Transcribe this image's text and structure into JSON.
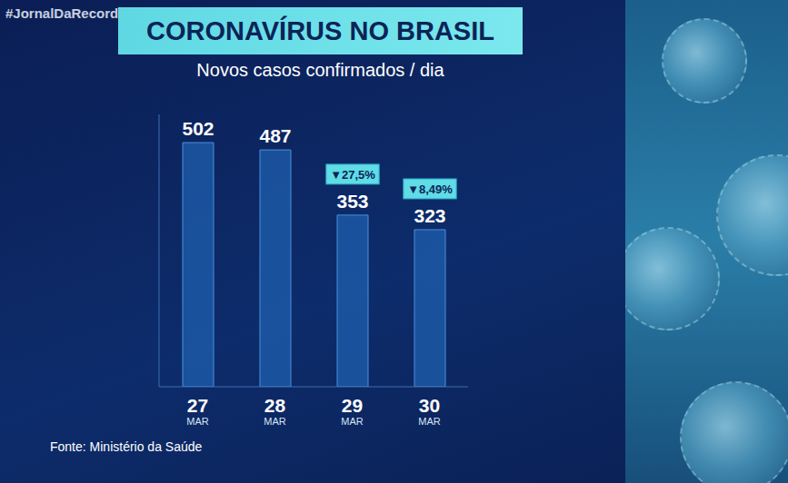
{
  "chart_data": {
    "type": "bar",
    "hashtag": "#JornalDaRecord",
    "title": "CORONAVÍRUS NO BRASIL",
    "subtitle": "Novos casos confirmados / dia",
    "categories": [
      "27 MAR",
      "28 MAR",
      "29 MAR",
      "30 MAR"
    ],
    "values": [
      502,
      487,
      353,
      323
    ],
    "color": "#1f5fae",
    "ylim": [
      0,
      560
    ],
    "data_labels": true,
    "tick_labels": "x",
    "grid": false,
    "annotations": [
      {
        "category": "29 MAR",
        "text": "▼27,5%"
      },
      {
        "category": "30 MAR",
        "text": "▼8,49%"
      }
    ],
    "source": "Fonte: Ministério da Saúde"
  }
}
